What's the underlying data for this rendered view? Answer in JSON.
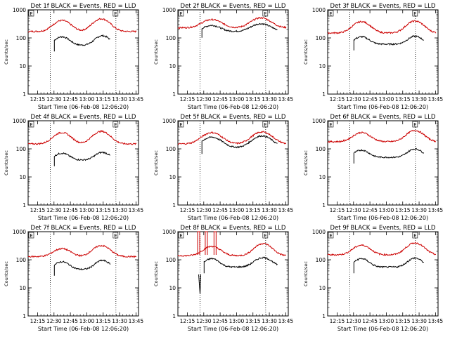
{
  "chart_data": [
    {
      "type": "line",
      "title": "Det 1f BLACK = Events, RED = LLD",
      "xlabel": "Start Time (06-Feb-08 12:06:20)",
      "ylabel": "Counts/sec",
      "yscale": "log",
      "ylim": [
        1,
        1000
      ],
      "xticks": [
        "12:15",
        "12:30",
        "12:45",
        "13:00",
        "13:15",
        "13:30",
        "13:45"
      ],
      "yticks": [
        "1",
        "10",
        "100",
        "1000"
      ],
      "markers": [
        "E",
        "E"
      ],
      "series": [
        {
          "name": "Events",
          "color": "#000000",
          "start_min": 24,
          "end_min": 75,
          "base": 55,
          "peaks": [
            {
              "t": 31,
              "v": 110,
              "w": 6
            },
            {
              "t": 68,
              "v": 120,
              "w": 6
            }
          ]
        },
        {
          "name": "LLD",
          "color": "#cc0000",
          "start_min": 0,
          "end_min": 99,
          "base": 170,
          "peaks": [
            {
              "t": 31,
              "v": 420,
              "w": 7
            },
            {
              "t": 67,
              "v": 480,
              "w": 7
            }
          ]
        }
      ]
    },
    {
      "type": "line",
      "title": "Det 2f BLACK = Events, RED = LLD",
      "xlabel": "Start Time (06-Feb-08 12:06:20)",
      "ylabel": "Counts/sec",
      "yscale": "log",
      "ylim": [
        1,
        1000
      ],
      "xticks": [
        "12:15",
        "12:30",
        "12:45",
        "13:00",
        "13:15",
        "13:30",
        "13:45"
      ],
      "yticks": [
        "1",
        "10",
        "100",
        "1000"
      ],
      "markers": [
        "E",
        "E"
      ],
      "series": [
        {
          "name": "Events",
          "color": "#000000",
          "start_min": 22,
          "end_min": 91,
          "base": 170,
          "peaks": [
            {
              "t": 31,
              "v": 280,
              "w": 7
            },
            {
              "t": 76,
              "v": 320,
              "w": 8
            }
          ]
        },
        {
          "name": "LLD",
          "color": "#cc0000",
          "start_min": 0,
          "end_min": 99,
          "base": 230,
          "peaks": [
            {
              "t": 31,
              "v": 450,
              "w": 8
            },
            {
              "t": 76,
              "v": 520,
              "w": 8
            }
          ]
        }
      ]
    },
    {
      "type": "line",
      "title": "Det 3f BLACK = Events, RED = LLD",
      "xlabel": "Start Time (06-Feb-08 12:06:20)",
      "ylabel": "Counts/sec",
      "yscale": "log",
      "ylim": [
        1,
        1000
      ],
      "xticks": [
        "12:15",
        "12:30",
        "12:45",
        "13:00",
        "13:15",
        "13:30",
        "13:45"
      ],
      "yticks": [
        "1",
        "10",
        "100",
        "1000"
      ],
      "markers": [
        "E",
        "E"
      ],
      "series": [
        {
          "name": "Events",
          "color": "#000000",
          "start_min": 24,
          "end_min": 88,
          "base": 60,
          "peaks": [
            {
              "t": 31,
              "v": 110,
              "w": 6
            },
            {
              "t": 80,
              "v": 115,
              "w": 6
            }
          ]
        },
        {
          "name": "LLD",
          "color": "#cc0000",
          "start_min": 0,
          "end_min": 99,
          "base": 150,
          "peaks": [
            {
              "t": 31,
              "v": 380,
              "w": 7
            },
            {
              "t": 80,
              "v": 400,
              "w": 7
            }
          ]
        }
      ]
    },
    {
      "type": "line",
      "title": "Det 4f BLACK = Events, RED = LLD",
      "xlabel": "Start Time (06-Feb-08 12:06:20)",
      "ylabel": "Counts/sec",
      "yscale": "log",
      "ylim": [
        1,
        1000
      ],
      "xticks": [
        "12:15",
        "12:30",
        "12:45",
        "13:00",
        "13:15",
        "13:30",
        "13:45"
      ],
      "yticks": [
        "1",
        "10",
        "100",
        "1000"
      ],
      "markers": [
        "E",
        "E"
      ],
      "series": [
        {
          "name": "Events",
          "color": "#000000",
          "start_min": 24,
          "end_min": 75,
          "base": 40,
          "peaks": [
            {
              "t": 31,
              "v": 70,
              "w": 6
            },
            {
              "t": 68,
              "v": 75,
              "w": 6
            }
          ]
        },
        {
          "name": "LLD",
          "color": "#cc0000",
          "start_min": 0,
          "end_min": 99,
          "base": 150,
          "peaks": [
            {
              "t": 31,
              "v": 380,
              "w": 7
            },
            {
              "t": 67,
              "v": 420,
              "w": 7
            }
          ]
        }
      ]
    },
    {
      "type": "line",
      "title": "Det 5f BLACK = Events, RED = LLD",
      "xlabel": "Start Time (06-Feb-08 12:06:20)",
      "ylabel": "Counts/sec",
      "yscale": "log",
      "ylim": [
        1,
        1000
      ],
      "xticks": [
        "12:15",
        "12:30",
        "12:45",
        "13:00",
        "13:15",
        "13:30",
        "13:45"
      ],
      "yticks": [
        "1",
        "10",
        "100",
        "1000"
      ],
      "markers": [
        "E",
        "E"
      ],
      "series": [
        {
          "name": "Events",
          "color": "#000000",
          "start_min": 22,
          "end_min": 91,
          "base": 110,
          "peaks": [
            {
              "t": 31,
              "v": 260,
              "w": 8
            },
            {
              "t": 77,
              "v": 290,
              "w": 8
            }
          ]
        },
        {
          "name": "LLD",
          "color": "#cc0000",
          "start_min": 0,
          "end_min": 99,
          "base": 150,
          "peaks": [
            {
              "t": 31,
              "v": 380,
              "w": 8
            },
            {
              "t": 77,
              "v": 400,
              "w": 8
            }
          ]
        }
      ]
    },
    {
      "type": "line",
      "title": "Det 6f BLACK = Events, RED = LLD",
      "xlabel": "Start Time (06-Feb-08 12:06:20)",
      "ylabel": "Counts/sec",
      "yscale": "log",
      "ylim": [
        1,
        1000
      ],
      "xticks": [
        "12:15",
        "12:30",
        "12:45",
        "13:00",
        "13:15",
        "13:30",
        "13:45"
      ],
      "yticks": [
        "1",
        "10",
        "100",
        "1000"
      ],
      "markers": [
        "E",
        "E"
      ],
      "series": [
        {
          "name": "Events",
          "color": "#000000",
          "start_min": 24,
          "end_min": 88,
          "base": 50,
          "peaks": [
            {
              "t": 31,
              "v": 90,
              "w": 6
            },
            {
              "t": 80,
              "v": 100,
              "w": 6
            }
          ]
        },
        {
          "name": "LLD",
          "color": "#cc0000",
          "start_min": 0,
          "end_min": 99,
          "base": 180,
          "peaks": [
            {
              "t": 31,
              "v": 380,
              "w": 7
            },
            {
              "t": 80,
              "v": 450,
              "w": 7
            }
          ]
        }
      ]
    },
    {
      "type": "line",
      "title": "Det 7f BLACK = Events, RED = LLD",
      "xlabel": "Start Time (06-Feb-08 12:06:20)",
      "ylabel": "Counts/sec",
      "yscale": "log",
      "ylim": [
        1,
        1000
      ],
      "xticks": [
        "12:15",
        "12:30",
        "12:45",
        "13:00",
        "13:15",
        "13:30",
        "13:45"
      ],
      "yticks": [
        "1",
        "10",
        "100",
        "1000"
      ],
      "markers": [
        "E",
        "E"
      ],
      "series": [
        {
          "name": "Events",
          "color": "#000000",
          "start_min": 24,
          "end_min": 75,
          "base": 45,
          "peaks": [
            {
              "t": 31,
              "v": 85,
              "w": 6
            },
            {
              "t": 68,
              "v": 95,
              "w": 6
            }
          ]
        },
        {
          "name": "LLD",
          "color": "#cc0000",
          "start_min": 0,
          "end_min": 99,
          "base": 130,
          "peaks": [
            {
              "t": 31,
              "v": 250,
              "w": 7
            },
            {
              "t": 67,
              "v": 320,
              "w": 7
            }
          ]
        }
      ]
    },
    {
      "type": "line",
      "title": "Det 8f BLACK = Events, RED = LLD",
      "xlabel": "Start Time (06-Feb-08 12:06:20)",
      "ylabel": "Counts/sec",
      "yscale": "log",
      "ylim": [
        1,
        1000
      ],
      "xticks": [
        "12:15",
        "12:30",
        "12:45",
        "13:00",
        "13:15",
        "13:30",
        "13:45"
      ],
      "yticks": [
        "1",
        "10",
        "100",
        "1000"
      ],
      "markers": [
        "E",
        "E"
      ],
      "spikes": [
        {
          "t": 19,
          "v": 1000,
          "w": 1.5
        },
        {
          "t": 26,
          "v": 1000,
          "w": 1.5
        },
        {
          "t": 34,
          "v": 1000,
          "w": 1.5
        }
      ],
      "series": [
        {
          "name": "Events",
          "color": "#000000",
          "start_min": 24,
          "end_min": 91,
          "base": 55,
          "peaks": [
            {
              "t": 31,
              "v": 110,
              "w": 6
            },
            {
              "t": 78,
              "v": 120,
              "w": 7
            }
          ]
        },
        {
          "name": "LLD",
          "color": "#cc0000",
          "start_min": 0,
          "end_min": 99,
          "base": 140,
          "peaks": [
            {
              "t": 31,
              "v": 300,
              "w": 7
            },
            {
              "t": 78,
              "v": 380,
              "w": 7
            }
          ]
        }
      ]
    },
    {
      "type": "line",
      "title": "Det 9f BLACK = Events, RED = LLD",
      "xlabel": "Start Time (06-Feb-08 12:06:20)",
      "ylabel": "Counts/sec",
      "yscale": "log",
      "ylim": [
        1,
        1000
      ],
      "xticks": [
        "12:15",
        "12:30",
        "12:45",
        "13:00",
        "13:15",
        "13:30",
        "13:45"
      ],
      "yticks": [
        "1",
        "10",
        "100",
        "1000"
      ],
      "markers": [
        "E",
        "E"
      ],
      "series": [
        {
          "name": "Events",
          "color": "#000000",
          "start_min": 24,
          "end_min": 88,
          "base": 55,
          "peaks": [
            {
              "t": 31,
              "v": 110,
              "w": 6
            },
            {
              "t": 80,
              "v": 115,
              "w": 6
            }
          ]
        },
        {
          "name": "LLD",
          "color": "#cc0000",
          "start_min": 0,
          "end_min": 99,
          "base": 150,
          "peaks": [
            {
              "t": 31,
              "v": 330,
              "w": 7
            },
            {
              "t": 80,
              "v": 400,
              "w": 7
            }
          ]
        }
      ]
    }
  ]
}
